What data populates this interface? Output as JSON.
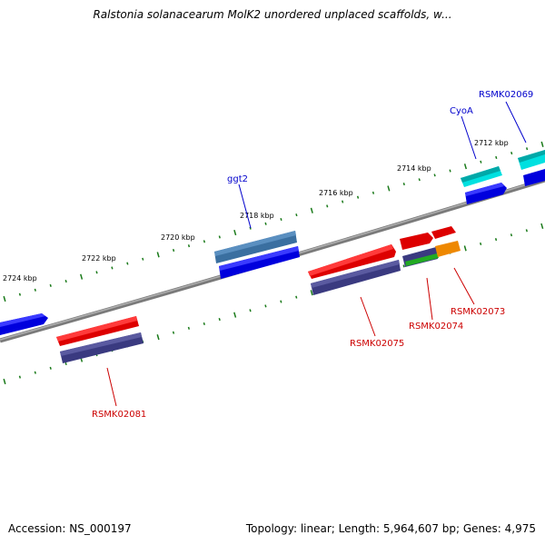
{
  "title": "Ralstonia solanacearum MolK2 unordered unplaced scaffolds, w...",
  "footer": {
    "accession": "Accession: NS_000197",
    "summary": "Topology: linear; Length: 5,964,607 bp; Genes: 4,975"
  },
  "colors": {
    "backbone": "#808080",
    "tick_green": "#1a7a1a",
    "label_blue": "#0000cc",
    "label_red": "#cc0000"
  },
  "kbp_labels": [
    "2724 kbp",
    "2722 kbp",
    "2720 kbp",
    "2718 kbp",
    "2716 kbp",
    "2714 kbp",
    "2712 kbp"
  ],
  "gene_labels": [
    "ggt2",
    "CyoA",
    "RSMK02069",
    "RSMK02075",
    "RSMK02074",
    "RSMK02073",
    "RSMK02081"
  ]
}
